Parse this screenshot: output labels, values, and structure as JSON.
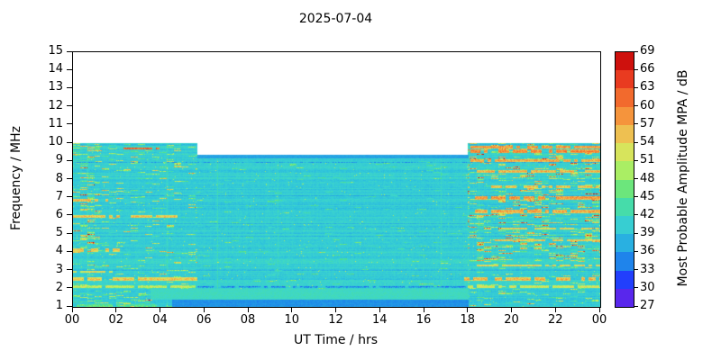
{
  "chart_data": {
    "type": "heatmap",
    "title": "2025-07-04",
    "xlabel": "UT Time / hrs",
    "ylabel": "Frequency / MHz",
    "colorbar_label": "Most Probable Amplitude MPA / dB",
    "x_range": [
      0,
      24
    ],
    "x_tick_values": [
      0,
      2,
      4,
      6,
      8,
      10,
      12,
      14,
      16,
      18,
      20,
      22,
      24
    ],
    "x_tick_labels": [
      "00",
      "02",
      "04",
      "06",
      "08",
      "10",
      "12",
      "14",
      "16",
      "18",
      "20",
      "22",
      "00"
    ],
    "y_range": [
      1,
      15
    ],
    "y_ticks": [
      1,
      2,
      3,
      4,
      5,
      6,
      7,
      8,
      9,
      10,
      11,
      12,
      13,
      14,
      15
    ],
    "grid": false,
    "colorbar_range": [
      27,
      69
    ],
    "colorbar_ticks": [
      69,
      66,
      63,
      60,
      57,
      54,
      51,
      48,
      45,
      42,
      39,
      36,
      33,
      30,
      27
    ],
    "colorbar_block_db": 3,
    "colormap_stops": [
      [
        27,
        "#7a1fe0"
      ],
      [
        31,
        "#2233ff"
      ],
      [
        35,
        "#1f8fe8"
      ],
      [
        39,
        "#2fc4dc"
      ],
      [
        42,
        "#3fd8c8"
      ],
      [
        45,
        "#4ce08c"
      ],
      [
        48,
        "#8cec6c"
      ],
      [
        51,
        "#c8f05c"
      ],
      [
        54,
        "#e6d75c"
      ],
      [
        57,
        "#f5a845"
      ],
      [
        60,
        "#f58033"
      ],
      [
        63,
        "#ef5426"
      ],
      [
        66,
        "#e32219"
      ],
      [
        69,
        "#b80000"
      ]
    ],
    "background_amplitude_db": 40.3,
    "no_data": {
      "above_mhz": 10,
      "daytime": {
        "t_start": 5.66,
        "t_end": 18.0,
        "above_mhz": 9.35
      }
    },
    "regions": [
      {
        "name": "morning-speckle",
        "t": [
          0,
          5.66
        ],
        "f": [
          1,
          10
        ],
        "streak_threshold": 0.9,
        "streak_gain": 14
      },
      {
        "name": "early-left-edge",
        "t": [
          0,
          1.2
        ],
        "f": [
          4,
          10
        ],
        "streak_threshold": 0.8,
        "streak_gain": 16
      },
      {
        "name": "bottom-left-mix",
        "t": [
          0,
          3.5
        ],
        "f": [
          1,
          1.7
        ],
        "streak_threshold": 0.78,
        "streak_gain": 11
      },
      {
        "name": "evening-streaks",
        "t": [
          18.0,
          24
        ],
        "f": [
          3.5,
          10
        ],
        "streak_threshold": 0.74,
        "streak_gain": 19
      },
      {
        "name": "evening-low",
        "t": [
          18.0,
          24
        ],
        "f": [
          1,
          3.5
        ],
        "streak_threshold": 0.88,
        "streak_gain": 12
      },
      {
        "name": "day-calm-low",
        "t": [
          3.5,
          18.0
        ],
        "f": [
          1.35,
          1.95
        ],
        "value": 42.5
      },
      {
        "name": "day-bottom-blue",
        "t": [
          4.5,
          18.0
        ],
        "f": [
          1,
          1.35
        ],
        "value": 35.5
      },
      {
        "name": "day-top-blue-cap",
        "t": [
          5.66,
          18.0
        ],
        "f": [
          9.18,
          9.35
        ],
        "value": 36.5
      },
      {
        "name": "day-flecks",
        "t": [
          5.66,
          18.0
        ],
        "f": [
          1.95,
          9.0
        ],
        "streak_threshold": 0.965,
        "streak_gain": 6
      }
    ],
    "interference_lines": [
      {
        "f": 1.02,
        "t": [
          0,
          3.8
        ],
        "value": 46,
        "width": 0.12
      },
      {
        "f": 2.08,
        "t": [
          0,
          5.66
        ],
        "value": 52,
        "width": 0.07
      },
      {
        "f": 2.05,
        "t": [
          5.66,
          18.0
        ],
        "value": 37.5,
        "width": 0.05
      },
      {
        "f": 2.08,
        "t": [
          18,
          24
        ],
        "value": 53,
        "width": 0.07
      },
      {
        "f": 2.5,
        "t": [
          0,
          5.66
        ],
        "value": 56,
        "width": 0.09
      },
      {
        "f": 2.5,
        "t": [
          17.8,
          24
        ],
        "value": 57,
        "width": 0.09
      },
      {
        "f": 2.9,
        "t": [
          0,
          1.8
        ],
        "value": 54,
        "width": 0.06
      },
      {
        "f": 3.25,
        "t": [
          18.3,
          24
        ],
        "value": 55,
        "width": 0.06
      },
      {
        "f": 4.12,
        "t": [
          0,
          2.1
        ],
        "value": 56,
        "width": 0.1
      },
      {
        "f": 4.65,
        "t": [
          19,
          24
        ],
        "value": 56,
        "width": 0.07
      },
      {
        "f": 5.3,
        "t": [
          19.5,
          24
        ],
        "value": 55,
        "width": 0.06
      },
      {
        "f": 5.95,
        "t": [
          0,
          5.2
        ],
        "value": 56,
        "width": 0.08
      },
      {
        "f": 6.25,
        "t": [
          18.3,
          24
        ],
        "value": 58,
        "width": 0.09
      },
      {
        "f": 6.85,
        "t": [
          0,
          1.6
        ],
        "value": 57,
        "width": 0.07
      },
      {
        "f": 7.0,
        "t": [
          18.3,
          24
        ],
        "value": 59,
        "width": 0.1
      },
      {
        "f": 7.6,
        "t": [
          19,
          24
        ],
        "value": 56,
        "width": 0.07
      },
      {
        "f": 8.45,
        "t": [
          18.3,
          24
        ],
        "value": 57,
        "width": 0.08
      },
      {
        "f": 8.95,
        "t": [
          0,
          24
        ],
        "value": 37.5,
        "width": 0.04
      },
      {
        "f": 9.05,
        "t": [
          18.1,
          24
        ],
        "value": 58,
        "width": 0.07
      },
      {
        "f": 9.55,
        "t": [
          18.1,
          24
        ],
        "value": 60,
        "width": 0.1
      },
      {
        "f": 9.8,
        "t": [
          18.1,
          24
        ],
        "value": 59,
        "width": 0.08
      },
      {
        "f": 9.72,
        "t": [
          2.3,
          4.1
        ],
        "value": 63,
        "width": 0.05
      }
    ]
  }
}
